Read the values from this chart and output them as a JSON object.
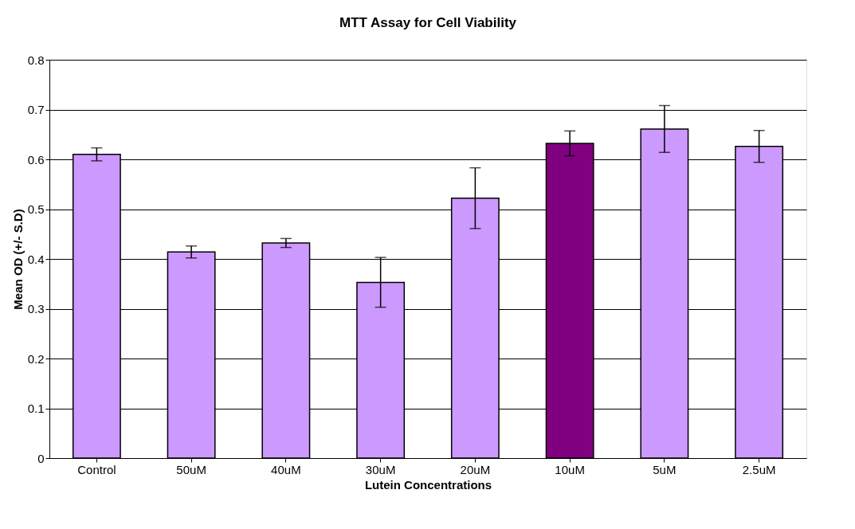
{
  "chart_data": {
    "type": "bar",
    "title": "MTT Assay for Cell Viability",
    "xlabel": "Lutein Concentrations",
    "ylabel": "Mean OD (+/- S.D)",
    "categories": [
      "Control",
      "50uM",
      "40uM",
      "30uM",
      "20uM",
      "10uM",
      "5uM",
      "2.5uM"
    ],
    "values": [
      0.61,
      0.414,
      0.432,
      0.353,
      0.522,
      0.632,
      0.661,
      0.626
    ],
    "errors": [
      0.013,
      0.012,
      0.009,
      0.05,
      0.061,
      0.025,
      0.047,
      0.032
    ],
    "colors": [
      "#cc99ff",
      "#cc99ff",
      "#cc99ff",
      "#cc99ff",
      "#cc99ff",
      "#800080",
      "#cc99ff",
      "#cc99ff"
    ],
    "ylim": [
      0,
      0.8
    ],
    "yticks": [
      0,
      0.1,
      0.2,
      0.3,
      0.4,
      0.5,
      0.6,
      0.7,
      0.8
    ],
    "grid": "y"
  }
}
